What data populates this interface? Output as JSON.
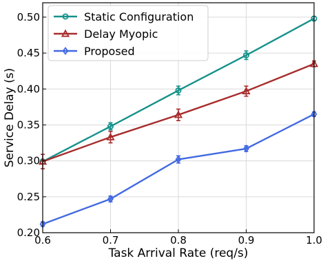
{
  "chart_data": {
    "type": "line",
    "title": "",
    "xlabel": "Task Arrival Rate (req/s)",
    "ylabel": "Service Delay (s)",
    "x": [
      0.6,
      0.7,
      0.8,
      0.9,
      1.0
    ],
    "xlim": [
      0.6,
      1.0
    ],
    "ylim": [
      0.2,
      0.52
    ],
    "x_ticks": [
      "0.6",
      "0.7",
      "0.8",
      "0.9",
      "1.0"
    ],
    "y_ticks": [
      "0.20",
      "0.25",
      "0.30",
      "0.35",
      "0.40",
      "0.45",
      "0.50"
    ],
    "grid": true,
    "legend_position": "top-left",
    "series": [
      {
        "name": "Static Configuration",
        "color": "#15918a",
        "marker": "circle",
        "values": [
          0.299,
          0.348,
          0.398,
          0.447,
          0.498
        ],
        "errors": [
          0.003,
          0.005,
          0.006,
          0.006,
          0.003
        ]
      },
      {
        "name": "Delay Myopic",
        "color": "#a72c2c",
        "marker": "triangle",
        "values": [
          0.299,
          0.333,
          0.364,
          0.397,
          0.435
        ],
        "errors": [
          0.01,
          0.008,
          0.008,
          0.007,
          0.004
        ]
      },
      {
        "name": "Proposed",
        "color": "#4169e1",
        "marker": "diamond",
        "values": [
          0.212,
          0.247,
          0.302,
          0.317,
          0.365
        ],
        "errors": [
          0.003,
          0.004,
          0.005,
          0.004,
          0.003
        ]
      }
    ]
  }
}
